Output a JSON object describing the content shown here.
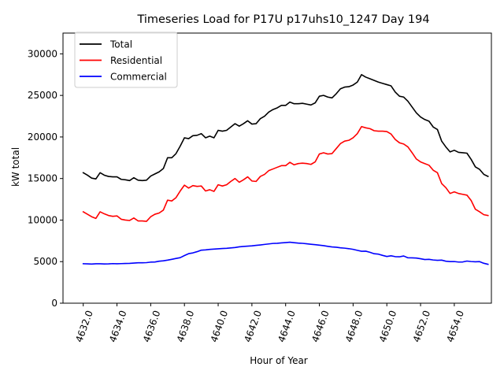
{
  "chart_data": {
    "type": "line",
    "title": "Timeseries Load for P17U p17uhs10_1247  Day 194",
    "xlabel": "Hour of Year",
    "ylabel": "kW total",
    "xlim": [
      4630.8,
      4656.2
    ],
    "ylim": [
      0,
      32500
    ],
    "legend_position": "top-left",
    "x_ticks": [
      4632,
      4634,
      4636,
      4638,
      4640,
      4642,
      4644,
      4646,
      4648,
      4650,
      4652,
      4654
    ],
    "x_tick_labels": [
      "4632.0",
      "4634.0",
      "4636.0",
      "4638.0",
      "4640.0",
      "4642.0",
      "4644.0",
      "4646.0",
      "4648.0",
      "4650.0",
      "4652.0",
      "4654.0"
    ],
    "y_ticks": [
      0,
      5000,
      10000,
      15000,
      20000,
      25000,
      30000
    ],
    "y_tick_labels": [
      "0",
      "5000",
      "10000",
      "15000",
      "20000",
      "25000",
      "30000"
    ],
    "x_start": 4632,
    "x_step": 0.25,
    "series": [
      {
        "name": "Total",
        "color": "#000000",
        "values": [
          15700,
          15400,
          15050,
          14950,
          15700,
          15400,
          15250,
          15200,
          15200,
          14900,
          14850,
          14750,
          15100,
          14800,
          14750,
          14800,
          15300,
          15550,
          15800,
          16200,
          17500,
          17500,
          18000,
          18900,
          19900,
          19800,
          20150,
          20200,
          20400,
          19900,
          20100,
          19900,
          20800,
          20700,
          20800,
          21200,
          21600,
          21300,
          21600,
          21950,
          21550,
          21600,
          22200,
          22500,
          23000,
          23300,
          23500,
          23800,
          23800,
          24200,
          24000,
          24000,
          24050,
          23950,
          23850,
          24100,
          24900,
          25000,
          24800,
          24700,
          25200,
          25800,
          26000,
          26050,
          26250,
          26600,
          27500,
          27200,
          27000,
          26800,
          26600,
          26450,
          26300,
          26150,
          25400,
          24900,
          24800,
          24300,
          23600,
          22900,
          22400,
          22100,
          21900,
          21200,
          20900,
          19500,
          18800,
          18200,
          18400,
          18150,
          18100,
          18050,
          17300,
          16400,
          16100,
          15500,
          15250
        ]
      },
      {
        "name": "Residential",
        "color": "#ff0000",
        "values": [
          11000,
          10700,
          10400,
          10200,
          11000,
          10750,
          10550,
          10450,
          10500,
          10100,
          10000,
          9950,
          10250,
          9900,
          9900,
          9850,
          10400,
          10700,
          10850,
          11200,
          12400,
          12300,
          12700,
          13500,
          14200,
          13850,
          14150,
          14050,
          14100,
          13500,
          13650,
          13450,
          14250,
          14100,
          14250,
          14650,
          15000,
          14550,
          14850,
          15200,
          14700,
          14650,
          15250,
          15500,
          15950,
          16150,
          16350,
          16550,
          16550,
          16950,
          16650,
          16800,
          16850,
          16800,
          16700,
          17000,
          17950,
          18100,
          17950,
          18000,
          18600,
          19200,
          19500,
          19600,
          19900,
          20400,
          21250,
          21100,
          21000,
          20750,
          20700,
          20700,
          20650,
          20350,
          19700,
          19300,
          19150,
          18800,
          18100,
          17350,
          17000,
          16800,
          16600,
          16000,
          15700,
          14400,
          13900,
          13200,
          13400,
          13200,
          13100,
          13000,
          12350,
          11300,
          11000,
          10650,
          10550
        ]
      },
      {
        "name": "Commercial",
        "color": "#0000ff",
        "values": [
          4750,
          4730,
          4710,
          4740,
          4740,
          4720,
          4730,
          4760,
          4740,
          4760,
          4780,
          4790,
          4830,
          4860,
          4860,
          4880,
          4940,
          4960,
          5050,
          5100,
          5180,
          5280,
          5380,
          5480,
          5730,
          5960,
          6050,
          6200,
          6380,
          6410,
          6470,
          6510,
          6540,
          6580,
          6600,
          6650,
          6700,
          6780,
          6830,
          6860,
          6900,
          6960,
          7010,
          7070,
          7130,
          7190,
          7210,
          7250,
          7290,
          7340,
          7280,
          7230,
          7200,
          7150,
          7090,
          7040,
          6980,
          6920,
          6840,
          6770,
          6730,
          6660,
          6620,
          6560,
          6480,
          6360,
          6250,
          6260,
          6120,
          5950,
          5900,
          5750,
          5620,
          5700,
          5600,
          5580,
          5680,
          5460,
          5450,
          5430,
          5350,
          5250,
          5280,
          5200,
          5160,
          5180,
          5050,
          5000,
          5010,
          4950,
          4960,
          5070,
          5010,
          4980,
          5000,
          4800,
          4680
        ]
      }
    ]
  }
}
